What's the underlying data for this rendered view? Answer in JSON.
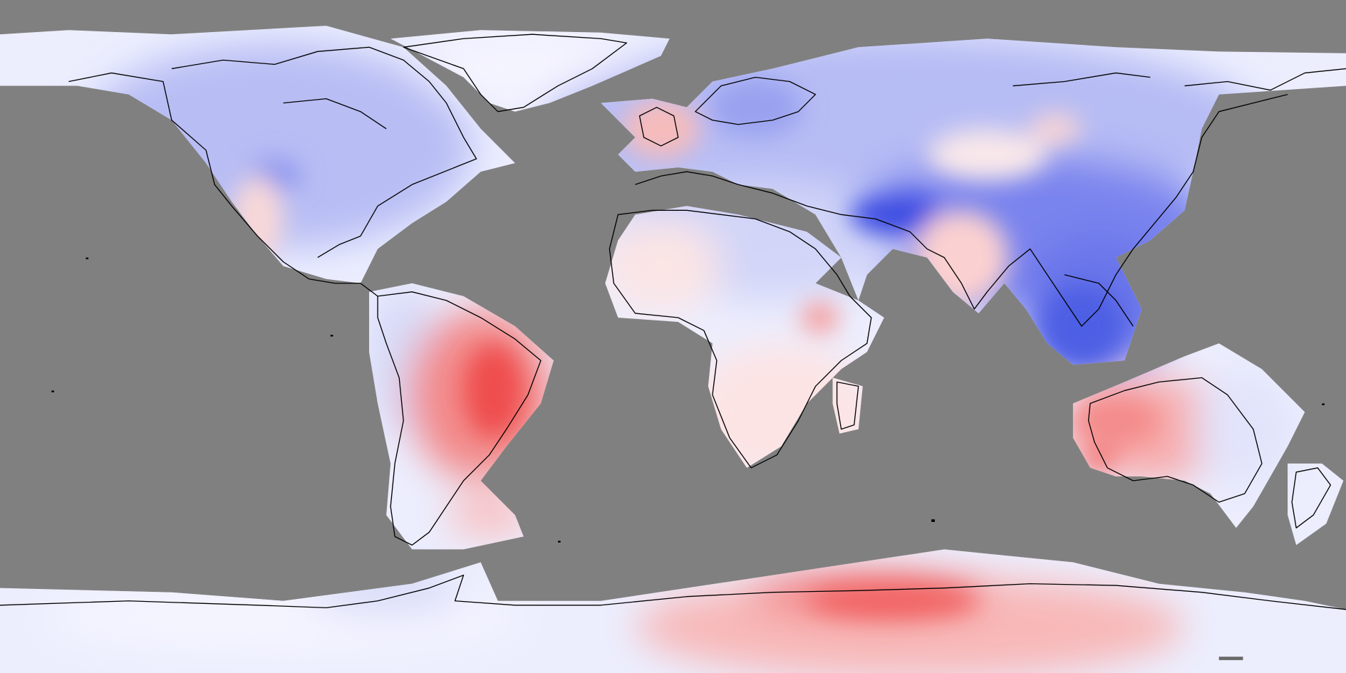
{
  "map": {
    "type": "global-anomaly-map",
    "projection": "equirectangular",
    "background_color": "#808080",
    "coastline_color": "#000000",
    "color_scale": {
      "negative": "#4a5ae8",
      "neutral": "#f4f4ff",
      "positive": "#f04848"
    },
    "regions": [
      {
        "id": "north-america",
        "sign": "negative",
        "strength": 0.35
      },
      {
        "id": "greenland",
        "sign": "negative",
        "strength": 0.12
      },
      {
        "id": "uk-ireland",
        "sign": "positive",
        "strength": 0.3
      },
      {
        "id": "scandinavia",
        "sign": "negative",
        "strength": 0.45
      },
      {
        "id": "eurasia",
        "sign": "negative",
        "strength": 0.45
      },
      {
        "id": "himalaya-southeast-asia",
        "sign": "negative",
        "strength": 0.8
      },
      {
        "id": "india",
        "sign": "positive",
        "strength": 0.25
      },
      {
        "id": "mongolia",
        "sign": "positive",
        "strength": 0.15
      },
      {
        "id": "north-africa-middle-east",
        "sign": "negative",
        "strength": 0.2
      },
      {
        "id": "west-africa",
        "sign": "positive",
        "strength": 0.2
      },
      {
        "id": "southern-africa",
        "sign": "positive",
        "strength": 0.3
      },
      {
        "id": "east-africa",
        "sign": "positive",
        "strength": 0.45
      },
      {
        "id": "madagascar",
        "sign": "positive",
        "strength": 0.15
      },
      {
        "id": "south-america-west",
        "sign": "negative",
        "strength": 0.25
      },
      {
        "id": "brazil",
        "sign": "positive",
        "strength": 0.85
      },
      {
        "id": "patagonia",
        "sign": "positive",
        "strength": 0.4
      },
      {
        "id": "australia-west",
        "sign": "positive",
        "strength": 0.5
      },
      {
        "id": "australia-east",
        "sign": "negative",
        "strength": 0.15
      },
      {
        "id": "new-zealand",
        "sign": "negative",
        "strength": 0.15
      },
      {
        "id": "west-antarctica",
        "sign": "negative",
        "strength": 0.15
      },
      {
        "id": "east-antarctica",
        "sign": "positive",
        "strength": 0.7
      }
    ]
  }
}
